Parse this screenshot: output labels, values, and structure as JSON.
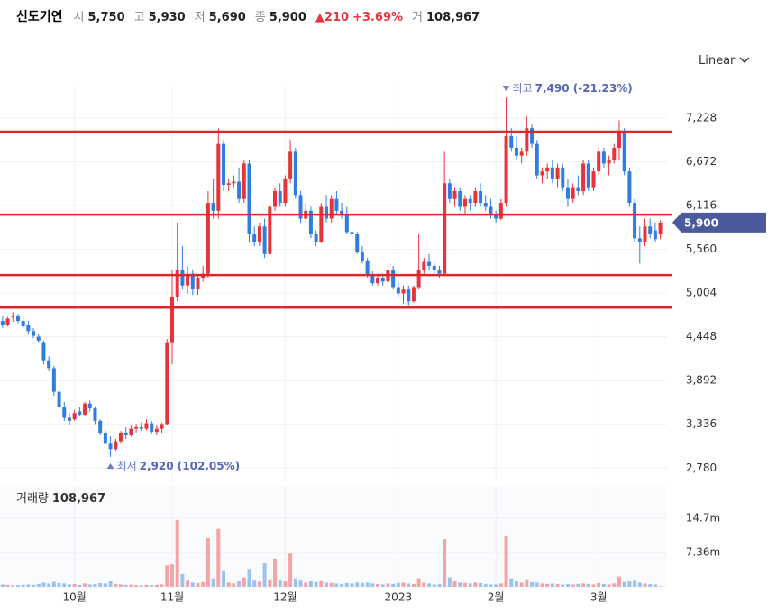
{
  "header": {
    "name": "신도기연",
    "items": [
      {
        "label": "시",
        "value": "5,750"
      },
      {
        "label": "고",
        "value": "5,930"
      },
      {
        "label": "저",
        "value": "5,690"
      },
      {
        "label": "종",
        "value": "5,900"
      }
    ],
    "change": "▲210",
    "change_pct": "+3.69%",
    "volume_label": "거",
    "volume": "108,967"
  },
  "scale_selector": "Linear",
  "chart_data": [
    {
      "type": "candlestick",
      "up_color": "#e8333a",
      "down_color": "#2f7de1",
      "xlim": [
        -0.5,
        129.3
      ],
      "ylim": [
        2600,
        7640
      ],
      "yticks": [
        {
          "value": 2780,
          "label": "2,780"
        },
        {
          "value": 3336,
          "label": "3,336"
        },
        {
          "value": 3892,
          "label": "3,892"
        },
        {
          "value": 4448,
          "label": "4,448"
        },
        {
          "value": 5004,
          "label": "5,004"
        },
        {
          "value": 5560,
          "label": "5,560"
        },
        {
          "value": 6116,
          "label": "6,116"
        },
        {
          "value": 6672,
          "label": "6,672"
        },
        {
          "value": 7228,
          "label": "7,228"
        }
      ],
      "xticks": [
        {
          "value": 14,
          "label": "10월"
        },
        {
          "value": 33,
          "label": "11월"
        },
        {
          "value": 55,
          "label": "12월"
        },
        {
          "value": 77,
          "label": "2023"
        },
        {
          "value": 96,
          "label": "2월"
        },
        {
          "value": 116,
          "label": "3월"
        }
      ],
      "hlines": {
        "color": "#e0262d",
        "values": [
          7056,
          6001,
          5233,
          4820
        ]
      },
      "last_price": {
        "value": 5900,
        "label": "5,900"
      },
      "max_annotation": {
        "index": 98,
        "value": 7490,
        "label": "최고",
        "value_label": "7,490 (-21.23%)"
      },
      "min_annotation": {
        "index": 21,
        "value": 2920,
        "label": "최저",
        "value_label": "2,920 (102.05%)"
      },
      "candles": [
        [
          4650,
          4720,
          4560,
          4600
        ],
        [
          4600,
          4700,
          4580,
          4680
        ],
        [
          4700,
          4760,
          4640,
          4720
        ],
        [
          4720,
          4740,
          4620,
          4650
        ],
        [
          4650,
          4700,
          4560,
          4580
        ],
        [
          4600,
          4650,
          4480,
          4520
        ],
        [
          4520,
          4560,
          4430,
          4460
        ],
        [
          4450,
          4480,
          4380,
          4400
        ],
        [
          4380,
          4400,
          4100,
          4150
        ],
        [
          4150,
          4200,
          4020,
          4050
        ],
        [
          4050,
          4080,
          3700,
          3750
        ],
        [
          3750,
          3800,
          3500,
          3550
        ],
        [
          3560,
          3620,
          3380,
          3420
        ],
        [
          3420,
          3480,
          3330,
          3380
        ],
        [
          3400,
          3520,
          3380,
          3480
        ],
        [
          3500,
          3560,
          3440,
          3460
        ],
        [
          3460,
          3620,
          3440,
          3600
        ],
        [
          3600,
          3640,
          3500,
          3540
        ],
        [
          3540,
          3560,
          3340,
          3380
        ],
        [
          3380,
          3400,
          3200,
          3230
        ],
        [
          3230,
          3260,
          3080,
          3100
        ],
        [
          3100,
          3180,
          2920,
          3020
        ],
        [
          3020,
          3150,
          3000,
          3120
        ],
        [
          3120,
          3250,
          3100,
          3230
        ],
        [
          3230,
          3300,
          3150,
          3200
        ],
        [
          3200,
          3320,
          3180,
          3280
        ],
        [
          3280,
          3340,
          3230,
          3300
        ],
        [
          3300,
          3360,
          3250,
          3280
        ],
        [
          3280,
          3400,
          3260,
          3350
        ],
        [
          3350,
          3380,
          3220,
          3240
        ],
        [
          3240,
          3320,
          3200,
          3280
        ],
        [
          3280,
          3360,
          3230,
          3340
        ],
        [
          3340,
          4420,
          3320,
          4380
        ],
        [
          4380,
          5300,
          4100,
          4950
        ],
        [
          4950,
          5900,
          4900,
          5300
        ],
        [
          5300,
          5600,
          5050,
          5100
        ],
        [
          5100,
          5350,
          5000,
          5250
        ],
        [
          5250,
          5300,
          4980,
          5050
        ],
        [
          5050,
          5250,
          4980,
          5200
        ],
        [
          5200,
          5350,
          5150,
          5250
        ],
        [
          5250,
          6300,
          5200,
          6150
        ],
        [
          6150,
          6450,
          5950,
          6050
        ],
        [
          6050,
          7100,
          5950,
          6900
        ],
        [
          6900,
          6950,
          6300,
          6380
        ],
        [
          6380,
          6450,
          6300,
          6400
        ],
        [
          6400,
          6500,
          6350,
          6420
        ],
        [
          6420,
          6600,
          6150,
          6200
        ],
        [
          6200,
          6700,
          6150,
          6650
        ],
        [
          6650,
          6700,
          5650,
          5750
        ],
        [
          5750,
          5850,
          5600,
          5650
        ],
        [
          5650,
          5900,
          5600,
          5850
        ],
        [
          5850,
          5950,
          5450,
          5500
        ],
        [
          5500,
          6150,
          5480,
          6100
        ],
        [
          6100,
          6350,
          6050,
          6300
        ],
        [
          6300,
          6400,
          6100,
          6150
        ],
        [
          6150,
          6500,
          6100,
          6450
        ],
        [
          6450,
          6950,
          6400,
          6800
        ],
        [
          6800,
          6850,
          6200,
          6250
        ],
        [
          6250,
          6300,
          5900,
          5950
        ],
        [
          5950,
          6150,
          5900,
          6050
        ],
        [
          6050,
          6100,
          5700,
          5750
        ],
        [
          5750,
          5800,
          5600,
          5650
        ],
        [
          5650,
          6150,
          5640,
          6100
        ],
        [
          6100,
          6250,
          5900,
          5950
        ],
        [
          5950,
          6250,
          5900,
          6200
        ],
        [
          6200,
          6300,
          6000,
          6050
        ],
        [
          6050,
          6150,
          5950,
          6000
        ],
        [
          6000,
          6100,
          5750,
          5780
        ],
        [
          5780,
          5900,
          5700,
          5750
        ],
        [
          5750,
          5780,
          5500,
          5520
        ],
        [
          5520,
          5600,
          5380,
          5420
        ],
        [
          5420,
          5450,
          5200,
          5230
        ],
        [
          5230,
          5280,
          5100,
          5130
        ],
        [
          5130,
          5250,
          5100,
          5200
        ],
        [
          5200,
          5250,
          5100,
          5150
        ],
        [
          5150,
          5350,
          5100,
          5300
        ],
        [
          5300,
          5350,
          5050,
          5080
        ],
        [
          5080,
          5150,
          4950,
          5000
        ],
        [
          5000,
          5100,
          4870,
          5050
        ],
        [
          5050,
          5100,
          4850,
          4900
        ],
        [
          4900,
          5100,
          4880,
          5080
        ],
        [
          5080,
          5750,
          5050,
          5300
        ],
        [
          5300,
          5450,
          5250,
          5400
        ],
        [
          5400,
          5500,
          5300,
          5350
        ],
        [
          5350,
          5400,
          5250,
          5300
        ],
        [
          5300,
          5350,
          5200,
          5250
        ],
        [
          5250,
          6800,
          5230,
          6400
        ],
        [
          6400,
          6450,
          6150,
          6200
        ],
        [
          6200,
          6350,
          6100,
          6300
        ],
        [
          6300,
          6350,
          6050,
          6100
        ],
        [
          6100,
          6250,
          6000,
          6200
        ],
        [
          6200,
          6250,
          6050,
          6150
        ],
        [
          6150,
          6350,
          6100,
          6300
        ],
        [
          6300,
          6400,
          6100,
          6150
        ],
        [
          6150,
          6250,
          6050,
          6100
        ],
        [
          6100,
          6200,
          5950,
          6000
        ],
        [
          6000,
          6050,
          5900,
          5950
        ],
        [
          5950,
          6200,
          5930,
          6150
        ],
        [
          6150,
          7490,
          6100,
          7000
        ],
        [
          7000,
          7100,
          6800,
          6850
        ],
        [
          6850,
          7000,
          6700,
          6750
        ],
        [
          6750,
          6850,
          6650,
          6800
        ],
        [
          6800,
          7250,
          6750,
          7100
        ],
        [
          7100,
          7150,
          6850,
          6900
        ],
        [
          6900,
          6950,
          6450,
          6500
        ],
        [
          6500,
          6600,
          6400,
          6550
        ],
        [
          6550,
          6650,
          6450,
          6600
        ],
        [
          6600,
          6700,
          6400,
          6450
        ],
        [
          6450,
          6650,
          6350,
          6600
        ],
        [
          6600,
          6650,
          6300,
          6350
        ],
        [
          6350,
          6450,
          6100,
          6200
        ],
        [
          6200,
          6400,
          6150,
          6350
        ],
        [
          6350,
          6500,
          6250,
          6300
        ],
        [
          6300,
          6700,
          6250,
          6650
        ],
        [
          6650,
          6700,
          6300,
          6350
        ],
        [
          6350,
          6600,
          6300,
          6550
        ],
        [
          6550,
          6850,
          6500,
          6800
        ],
        [
          6800,
          6850,
          6600,
          6650
        ],
        [
          6650,
          6750,
          6500,
          6700
        ],
        [
          6700,
          6900,
          6650,
          6850
        ],
        [
          6850,
          7200,
          6700,
          7050
        ],
        [
          7050,
          7100,
          6500,
          6550
        ],
        [
          6550,
          6600,
          6100,
          6150
        ],
        [
          6150,
          6200,
          5650,
          5700
        ],
        [
          5700,
          5850,
          5380,
          5650
        ],
        [
          5650,
          5950,
          5600,
          5850
        ],
        [
          5850,
          5950,
          5700,
          5750
        ],
        [
          5800,
          5900,
          5650,
          5690
        ],
        [
          5750,
          5930,
          5690,
          5900
        ]
      ]
    },
    {
      "type": "bar",
      "title": "거래량",
      "title_value": "108,967",
      "up_color": "#f4a3a6",
      "down_color": "#9cc3f0",
      "ylim": [
        0,
        21400000
      ],
      "yticks": [
        {
          "value": 7360000,
          "label": "7.36m"
        },
        {
          "value": 14700000,
          "label": "14.7m"
        }
      ],
      "values": [
        500000,
        400000,
        300000,
        350000,
        450000,
        500000,
        400000,
        600000,
        900000,
        700000,
        1100000,
        800000,
        700000,
        500000,
        600000,
        400000,
        700000,
        500000,
        600000,
        800000,
        700000,
        1200000,
        600000,
        500000,
        400000,
        450000,
        350000,
        300000,
        400000,
        350000,
        400000,
        500000,
        4600000,
        4800000,
        14300000,
        2700000,
        1500000,
        900000,
        800000,
        1000000,
        10400000,
        1800000,
        12400000,
        3500000,
        900000,
        700000,
        1200000,
        2000000,
        3800000,
        1500000,
        1100000,
        5000000,
        1600000,
        6000000,
        1500000,
        1200000,
        7300000,
        1800000,
        1500000,
        900000,
        1200000,
        1000000,
        1400000,
        900000,
        800000,
        700000,
        600000,
        800000,
        700000,
        900000,
        800000,
        900000,
        700000,
        600000,
        500000,
        700000,
        600000,
        800000,
        900000,
        700000,
        600000,
        1800000,
        900000,
        700000,
        500000,
        600000,
        10200000,
        2000000,
        1200000,
        900000,
        800000,
        700000,
        900000,
        800000,
        600000,
        500000,
        500000,
        700000,
        10800000,
        1800000,
        1300000,
        900000,
        1600000,
        1000000,
        900000,
        700000,
        600000,
        700000,
        600000,
        500000,
        600000,
        500000,
        600000,
        700000,
        600000,
        500000,
        800000,
        600000,
        500000,
        700000,
        2200000,
        1000000,
        1200000,
        1500000,
        900000,
        700000,
        600000,
        500000,
        108967
      ]
    }
  ]
}
